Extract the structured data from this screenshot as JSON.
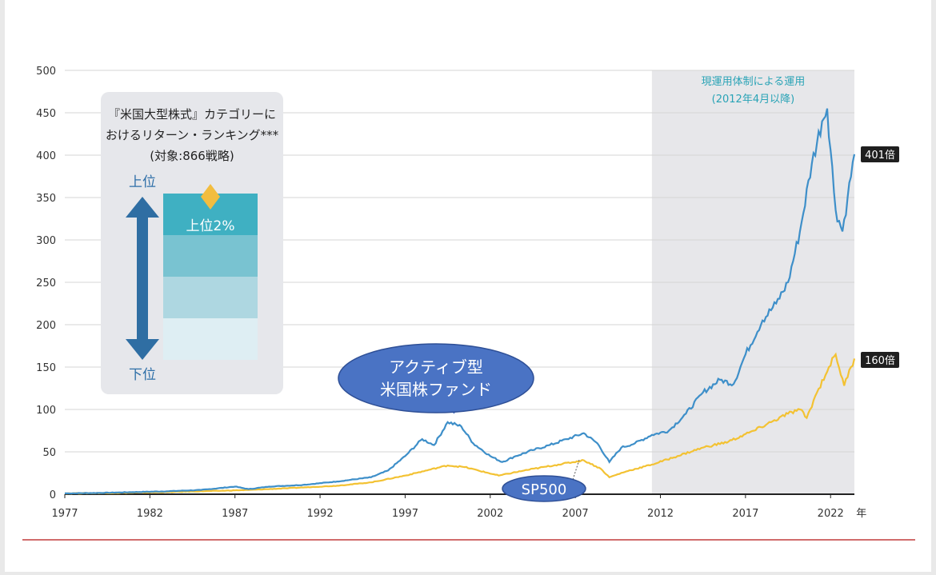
{
  "chart_data": {
    "type": "line",
    "x_ticks": [
      "1977",
      "1982",
      "1987",
      "1992",
      "1997",
      "2002",
      "2007",
      "2012",
      "2017",
      "2022"
    ],
    "x_unit": "年",
    "xlim": [
      1977,
      2023.4
    ],
    "y_ticks": [
      "0",
      "50",
      "100",
      "150",
      "200",
      "250",
      "300",
      "350",
      "400",
      "450",
      "500"
    ],
    "ylim": [
      0,
      500
    ],
    "grid": true,
    "shaded_region": {
      "from": 2011.5,
      "to": 2023.4,
      "label_line1": "現運用体制による運用",
      "label_line2": "(2012年4月以降)"
    },
    "series": [
      {
        "name": "アクティブ型\n米国株ファンド",
        "color": "#3e8fc9",
        "end_label": "401倍",
        "points": [
          [
            1977,
            1
          ],
          [
            1979,
            1.5
          ],
          [
            1981,
            2.5
          ],
          [
            1983,
            3.5
          ],
          [
            1985,
            5
          ],
          [
            1987,
            9
          ],
          [
            1987.8,
            6
          ],
          [
            1989,
            9
          ],
          [
            1991,
            11
          ],
          [
            1993,
            15
          ],
          [
            1995,
            20
          ],
          [
            1996,
            28
          ],
          [
            1997,
            45
          ],
          [
            1998,
            65
          ],
          [
            1998.7,
            58
          ],
          [
            1999.5,
            85
          ],
          [
            2000.3,
            80
          ],
          [
            2001,
            60
          ],
          [
            2002,
            45
          ],
          [
            2002.7,
            38
          ],
          [
            2003.5,
            45
          ],
          [
            2004.5,
            52
          ],
          [
            2005.5,
            58
          ],
          [
            2006.5,
            65
          ],
          [
            2007.5,
            72
          ],
          [
            2008.3,
            60
          ],
          [
            2009,
            38
          ],
          [
            2009.7,
            55
          ],
          [
            2010.5,
            60
          ],
          [
            2011.5,
            70
          ],
          [
            2012.5,
            75
          ],
          [
            2013.5,
            95
          ],
          [
            2014.5,
            120
          ],
          [
            2015.5,
            135
          ],
          [
            2016.3,
            130
          ],
          [
            2017,
            165
          ],
          [
            2018,
            205
          ],
          [
            2018.8,
            225
          ],
          [
            2019.5,
            250
          ],
          [
            2020.2,
            310
          ],
          [
            2020.9,
            390
          ],
          [
            2021.5,
            440
          ],
          [
            2021.8,
            455
          ],
          [
            2022.3,
            335
          ],
          [
            2022.7,
            310
          ],
          [
            2023,
            350
          ],
          [
            2023.4,
            401
          ]
        ]
      },
      {
        "name": "SP500",
        "color": "#f3c233",
        "end_label": "160倍",
        "points": [
          [
            1977,
            1
          ],
          [
            1980,
            1.5
          ],
          [
            1983,
            2.5
          ],
          [
            1986,
            4
          ],
          [
            1987.8,
            5
          ],
          [
            1990,
            7
          ],
          [
            1993,
            10
          ],
          [
            1995,
            14
          ],
          [
            1997,
            22
          ],
          [
            1999.5,
            34
          ],
          [
            2000.5,
            32
          ],
          [
            2002.5,
            22
          ],
          [
            2004,
            28
          ],
          [
            2006,
            35
          ],
          [
            2007.5,
            40
          ],
          [
            2008.5,
            30
          ],
          [
            2009,
            20
          ],
          [
            2010,
            27
          ],
          [
            2011.5,
            35
          ],
          [
            2013,
            45
          ],
          [
            2014.5,
            55
          ],
          [
            2016,
            62
          ],
          [
            2017.5,
            75
          ],
          [
            2018.5,
            85
          ],
          [
            2019.5,
            95
          ],
          [
            2020.2,
            100
          ],
          [
            2020.6,
            90
          ],
          [
            2021.2,
            120
          ],
          [
            2021.9,
            150
          ],
          [
            2022.3,
            165
          ],
          [
            2022.8,
            128
          ],
          [
            2023.2,
            150
          ],
          [
            2023.4,
            160
          ]
        ]
      }
    ],
    "legend_box": {
      "title_line1": "『米国大型株式』カテゴリーに",
      "title_line2": "おけるリターン・ランキング***",
      "title_line3": "(対象:866戦略)",
      "top_label": "上位",
      "bottom_label": "下位",
      "highlight_label": "上位2%",
      "colors": [
        "#3fb0c2",
        "#79c3d1",
        "#aed7e1",
        "#deeef3"
      ],
      "marker_color": "#f2bd3f"
    }
  },
  "colors": {
    "rule": "#c23b3b",
    "shade": "#e7e7ea",
    "callout": "#4a73c4"
  }
}
